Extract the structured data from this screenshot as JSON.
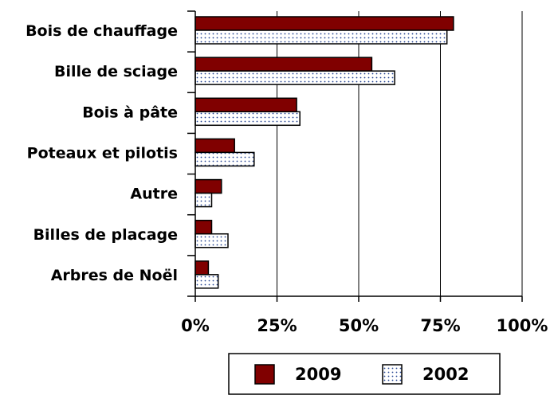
{
  "chart_data": {
    "type": "hbar",
    "categories": [
      "Bois de chauffage",
      "Bille de sciage",
      "Bois à pâte",
      "Poteaux et pilotis",
      "Autre",
      "Billes de placage",
      "Arbres de Noël"
    ],
    "series": [
      {
        "name": "2009",
        "color": "#800000",
        "fill": "solid",
        "values": [
          79,
          54,
          31,
          12,
          8,
          5,
          4
        ]
      },
      {
        "name": "2002",
        "color": "#1f3f8f",
        "fill": "dotted",
        "values": [
          77,
          61,
          32,
          18,
          5,
          10,
          7
        ]
      }
    ],
    "xlim": [
      0,
      100
    ],
    "xticks": [
      {
        "value": 0,
        "label": "0%"
      },
      {
        "value": 25,
        "label": "25%"
      },
      {
        "value": 50,
        "label": "50%"
      },
      {
        "value": 75,
        "label": "75%"
      },
      {
        "value": 100,
        "label": "100%"
      }
    ],
    "grid": true,
    "legend": "bottom"
  }
}
